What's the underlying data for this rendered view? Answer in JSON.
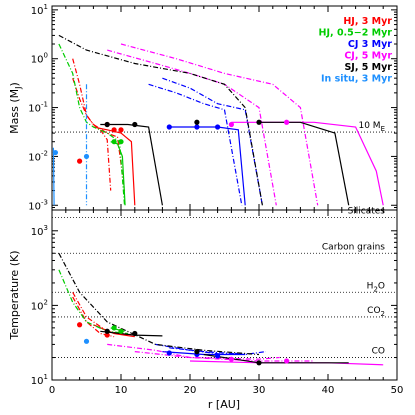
{
  "chart_data": {
    "type": "line",
    "panels": [
      {
        "id": "mass",
        "ylabel": "Mass (M",
        "ylabel_sub": "J",
        "ylabel_end": ")",
        "yscale": "log",
        "ylim": [
          0.0008,
          12
        ],
        "yticks": [
          {
            "value": 0.001,
            "base": "10",
            "exp": "-3"
          },
          {
            "value": 0.01,
            "base": "10",
            "exp": "-2"
          },
          {
            "value": 0.1,
            "base": "10",
            "exp": "-1"
          },
          {
            "value": 1,
            "base": "10",
            "exp": "0"
          },
          {
            "value": 10,
            "base": "10",
            "exp": "1"
          }
        ],
        "reference_lines": [
          {
            "value": 0.0315,
            "label": "10 M",
            "label_sub": "E"
          }
        ]
      },
      {
        "id": "temperature",
        "ylabel": "Temperature (K)",
        "yscale": "log",
        "ylim": [
          10,
          1900
        ],
        "yticks": [
          {
            "value": 10,
            "base": "10",
            "exp": "1"
          },
          {
            "value": 100,
            "base": "10",
            "exp": "2"
          },
          {
            "value": 1000,
            "base": "10",
            "exp": "3"
          }
        ],
        "reference_lines": [
          {
            "value": 1500,
            "label": "Silicates",
            "label_sub": ""
          },
          {
            "value": 500,
            "label": "Carbon grains",
            "label_sub": ""
          },
          {
            "value": 150,
            "label": "H",
            "label_sub": "2",
            "label_end": "O"
          },
          {
            "value": 70,
            "label": "CO",
            "label_sub": "2",
            "label_end": ""
          },
          {
            "value": 20,
            "label": "CO",
            "label_sub": "",
            "label_end": ""
          }
        ]
      }
    ],
    "xlabel": "r [AU]",
    "xlim": [
      0,
      50
    ],
    "xticks": [
      0,
      10,
      20,
      30,
      40,
      50
    ],
    "legend": {
      "position": "top-right",
      "entries": [
        {
          "label": "HJ, 3 Myr",
          "color": "#ff0000"
        },
        {
          "label": "HJ, 0.5−2 Myr",
          "color": "#00cc00"
        },
        {
          "label": "CJ 3 Myr",
          "color": "#0000ff"
        },
        {
          "label": "CJ, 5 Myr",
          "color": "#ff00ff"
        },
        {
          "label": "SJ, 5 Myr",
          "color": "#000000"
        },
        {
          "label": "In situ, 3 Myr",
          "color": "#1e90ff"
        }
      ]
    },
    "series": [
      {
        "name": "HJ, 3 Myr",
        "color": "#ff0000",
        "dashed": true,
        "mass": [
          [
            3,
            0.4
          ],
          [
            4,
            0.15
          ],
          [
            5,
            0.07
          ],
          [
            6,
            0.045
          ],
          [
            7,
            0.035
          ],
          [
            8,
            0.022
          ],
          [
            8.5,
            0.002
          ]
        ],
        "temp": [
          [
            3,
            130
          ],
          [
            5,
            60
          ],
          [
            7,
            42
          ],
          [
            9,
            38
          ]
        ]
      },
      {
        "name": "HJ, 3 Myr",
        "color": "#ff0000",
        "dashed": true,
        "mass": [
          [
            3,
            1
          ],
          [
            4,
            0.3
          ],
          [
            5,
            0.07
          ],
          [
            6,
            0.045
          ],
          [
            8,
            0.03
          ],
          [
            9.5,
            0.025
          ],
          [
            10.5,
            0.002
          ]
        ],
        "temp": [
          [
            3,
            150
          ],
          [
            5,
            70
          ],
          [
            8,
            45
          ],
          [
            11,
            40
          ]
        ]
      },
      {
        "name": "HJ, 3 Myr",
        "color": "#ff0000",
        "dashed": false,
        "mass": [
          [
            6,
            0.04
          ],
          [
            8,
            0.035
          ],
          [
            10,
            0.03
          ],
          [
            11.5,
            0.02
          ],
          [
            12,
            0.001
          ]
        ],
        "temp": [
          [
            6,
            55
          ],
          [
            9,
            42
          ],
          [
            12,
            38
          ]
        ]
      },
      {
        "name": "HJ, 0.5−2 Myr",
        "color": "#00cc00",
        "dashed": true,
        "mass": [
          [
            1,
            2
          ],
          [
            2,
            1
          ],
          [
            3,
            0.5
          ],
          [
            4,
            0.1
          ],
          [
            5,
            0.05
          ],
          [
            6,
            0.04
          ],
          [
            8,
            0.03
          ],
          [
            9.8,
            0.02
          ],
          [
            10.5,
            0.001
          ]
        ],
        "temp": [
          [
            1,
            300
          ],
          [
            3,
            110
          ],
          [
            5,
            60
          ],
          [
            8,
            45
          ],
          [
            11,
            42
          ]
        ]
      },
      {
        "name": "HJ, 0.5−2 Myr",
        "color": "#00cc00",
        "dashed": false,
        "mass": [
          [
            8.5,
            0.02
          ],
          [
            9.5,
            0.018
          ],
          [
            10.2,
            0.01
          ],
          [
            10.6,
            0.001
          ]
        ],
        "temp": [
          [
            8.5,
            50
          ],
          [
            10.5,
            45
          ]
        ]
      },
      {
        "name": "CJ 3 Myr",
        "color": "#0000ff",
        "dashed": true,
        "mass": [
          [
            14,
            0.3
          ],
          [
            18,
            0.2
          ],
          [
            22,
            0.12
          ],
          [
            25,
            0.09
          ],
          [
            27.5,
            0.001
          ]
        ],
        "temp": [
          [
            15,
            30
          ],
          [
            20,
            25
          ],
          [
            25,
            22
          ],
          [
            27.5,
            23
          ]
        ]
      },
      {
        "name": "CJ 3 Myr",
        "color": "#0000ff",
        "dashed": true,
        "mass": [
          [
            16,
            0.4
          ],
          [
            20,
            0.25
          ],
          [
            24,
            0.12
          ],
          [
            28,
            0.09
          ],
          [
            30.5,
            0.001
          ]
        ],
        "temp": [
          [
            17,
            27
          ],
          [
            22,
            24
          ],
          [
            28,
            22
          ],
          [
            31,
            24
          ]
        ]
      },
      {
        "name": "CJ 3 Myr",
        "color": "#0000ff",
        "dashed": false,
        "mass": [
          [
            17,
            0.04
          ],
          [
            20,
            0.04
          ],
          [
            24,
            0.04
          ],
          [
            27,
            0.035
          ],
          [
            28,
            0.001
          ]
        ],
        "temp": [
          [
            16,
            24
          ],
          [
            22,
            22
          ],
          [
            28,
            22
          ]
        ]
      },
      {
        "name": "CJ, 5 Myr",
        "color": "#ff00ff",
        "dashed": true,
        "mass": [
          [
            8,
            1.5
          ],
          [
            15,
            0.8
          ],
          [
            20,
            0.5
          ],
          [
            25,
            0.3
          ],
          [
            30,
            0.1
          ],
          [
            32.5,
            0.001
          ]
        ],
        "temp": [
          [
            8,
            30
          ],
          [
            15,
            25
          ],
          [
            20,
            20
          ],
          [
            30,
            19
          ],
          [
            33,
            20
          ]
        ]
      },
      {
        "name": "CJ, 5 Myr",
        "color": "#ff00ff",
        "dashed": true,
        "mass": [
          [
            10,
            2
          ],
          [
            18,
            1
          ],
          [
            25,
            0.5
          ],
          [
            32,
            0.3
          ],
          [
            36,
            0.1
          ],
          [
            38.5,
            0.001
          ]
        ],
        "temp": [
          [
            12,
            24
          ],
          [
            20,
            20
          ],
          [
            30,
            18
          ],
          [
            38,
            18
          ]
        ]
      },
      {
        "name": "CJ, 5 Myr",
        "color": "#ff00ff",
        "dashed": false,
        "mass": [
          [
            26,
            0.05
          ],
          [
            32,
            0.05
          ],
          [
            38,
            0.05
          ],
          [
            44,
            0.04
          ],
          [
            47,
            0.005
          ],
          [
            48,
            0.001
          ]
        ],
        "temp": [
          [
            20,
            18
          ],
          [
            30,
            17
          ],
          [
            40,
            17
          ],
          [
            48,
            16
          ]
        ]
      },
      {
        "name": "SJ, 5 Myr",
        "color": "#000000",
        "dashed": true,
        "mass": [
          [
            1,
            3
          ],
          [
            5,
            1.5
          ],
          [
            12,
            0.8
          ],
          [
            20,
            0.5
          ],
          [
            25,
            0.3
          ],
          [
            28,
            0.1
          ],
          [
            30.5,
            0.001
          ]
        ],
        "temp": [
          [
            1,
            500
          ],
          [
            4,
            150
          ],
          [
            8,
            60
          ],
          [
            15,
            30
          ],
          [
            22,
            25
          ],
          [
            30,
            22
          ]
        ]
      },
      {
        "name": "SJ, 5 Myr",
        "color": "#000000",
        "dashed": false,
        "mass": [
          [
            7,
            0.045
          ],
          [
            11,
            0.045
          ],
          [
            14,
            0.04
          ],
          [
            16,
            0.001
          ]
        ],
        "temp": [
          [
            7,
            45
          ],
          [
            12,
            40
          ],
          [
            16,
            39
          ]
        ]
      },
      {
        "name": "SJ, 5 Myr",
        "color": "#000000",
        "dashed": false,
        "mass": [
          [
            30,
            0.05
          ],
          [
            36,
            0.05
          ],
          [
            41,
            0.03
          ],
          [
            43,
            0.001
          ]
        ],
        "temp": [
          [
            22,
            22
          ],
          [
            30,
            17
          ],
          [
            38,
            17
          ],
          [
            43,
            17
          ]
        ]
      },
      {
        "name": "In situ, 3 Myr",
        "color": "#1e90ff",
        "dashed": true,
        "mass": [
          [
            5,
            0.3
          ],
          [
            5,
            0.01
          ],
          [
            5,
            0.001
          ]
        ],
        "temp": [
          [
            5,
            35
          ]
        ]
      },
      {
        "name": "In situ, 3 Myr",
        "color": "#1e90ff",
        "dashed": false,
        "mass": [
          [
            0.2,
            0.015
          ],
          [
            0.3,
            0.001
          ]
        ],
        "temp": [
          [
            0.3,
            25
          ]
        ]
      }
    ],
    "markers": [
      {
        "color": "#ff0000",
        "mass": [
          [
            4,
            0.008
          ],
          [
            8,
            0.045
          ],
          [
            9,
            0.035
          ],
          [
            10,
            0.035
          ]
        ],
        "temp": [
          [
            4,
            55
          ],
          [
            8,
            40
          ],
          [
            10,
            45
          ]
        ]
      },
      {
        "color": "#00cc00",
        "mass": [
          [
            9,
            0.02
          ],
          [
            10,
            0.02
          ]
        ],
        "temp": [
          [
            9,
            50
          ],
          [
            10,
            45
          ]
        ]
      },
      {
        "color": "#0000ff",
        "mass": [
          [
            17,
            0.04
          ],
          [
            21,
            0.04
          ],
          [
            24,
            0.04
          ]
        ],
        "temp": [
          [
            17,
            23
          ],
          [
            21,
            22
          ],
          [
            24,
            21
          ]
        ]
      },
      {
        "color": "#ff00ff",
        "mass": [
          [
            26,
            0.045
          ],
          [
            34,
            0.05
          ]
        ],
        "temp": [
          [
            26,
            19
          ],
          [
            34,
            18
          ]
        ]
      },
      {
        "color": "#000000",
        "mass": [
          [
            8,
            0.045
          ],
          [
            12,
            0.045
          ],
          [
            21,
            0.05
          ],
          [
            30,
            0.05
          ]
        ],
        "temp": [
          [
            8,
            45
          ],
          [
            12,
            42
          ],
          [
            21,
            24
          ],
          [
            30,
            17
          ]
        ]
      },
      {
        "color": "#1e90ff",
        "mass": [
          [
            5,
            0.01
          ],
          [
            0.5,
            0.012
          ]
        ],
        "temp": [
          [
            5,
            33
          ]
        ]
      }
    ]
  }
}
